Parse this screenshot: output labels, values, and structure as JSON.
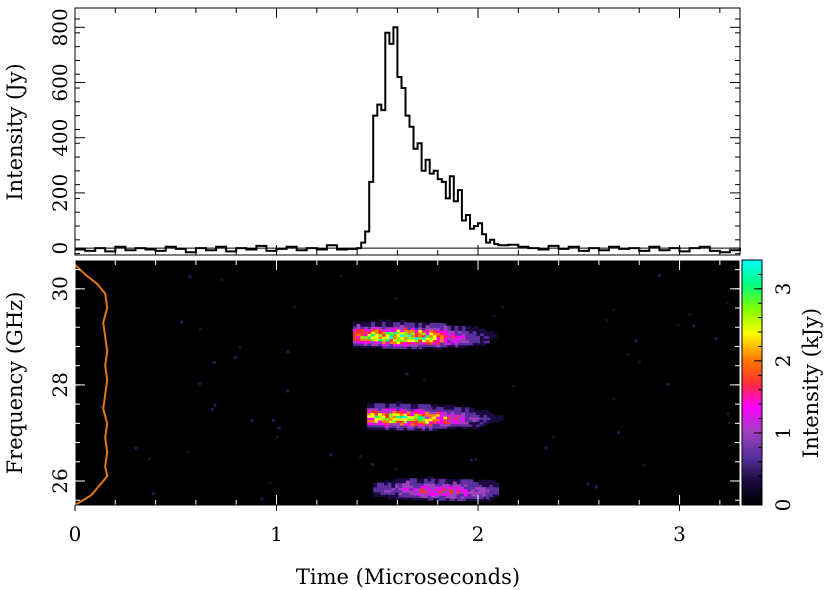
{
  "chart_data": [
    {
      "type": "line",
      "panel": "lightcurve",
      "ylabel": "Intensity (Jy)",
      "xlim": [
        0,
        3.3
      ],
      "ylim": [
        -25,
        870
      ],
      "yticks": [
        0,
        200,
        400,
        600,
        800
      ],
      "series": [
        {
          "style": "step",
          "color": "#000000",
          "x": [
            0.0,
            0.05,
            0.1,
            0.15,
            0.2,
            0.25,
            0.3,
            0.35,
            0.4,
            0.45,
            0.5,
            0.55,
            0.6,
            0.65,
            0.7,
            0.75,
            0.8,
            0.85,
            0.9,
            0.95,
            1.0,
            1.05,
            1.1,
            1.15,
            1.2,
            1.25,
            1.3,
            1.35,
            1.4,
            1.42,
            1.44,
            1.46,
            1.48,
            1.5,
            1.52,
            1.54,
            1.56,
            1.58,
            1.6,
            1.62,
            1.64,
            1.66,
            1.68,
            1.7,
            1.72,
            1.74,
            1.76,
            1.78,
            1.8,
            1.82,
            1.84,
            1.86,
            1.88,
            1.9,
            1.92,
            1.94,
            1.96,
            1.98,
            2.0,
            2.02,
            2.04,
            2.06,
            2.08,
            2.1,
            2.15,
            2.2,
            2.25,
            2.3,
            2.35,
            2.4,
            2.45,
            2.5,
            2.55,
            2.6,
            2.65,
            2.7,
            2.75,
            2.8,
            2.85,
            2.9,
            2.95,
            3.0,
            3.05,
            3.1,
            3.15,
            3.2,
            3.25,
            3.3
          ],
          "y": [
            -5,
            -10,
            0,
            -12,
            5,
            -8,
            0,
            -5,
            -10,
            5,
            -3,
            -15,
            0,
            -8,
            5,
            -12,
            0,
            -5,
            8,
            -10,
            -3,
            5,
            -8,
            0,
            -5,
            10,
            -5,
            -3,
            0,
            20,
            60,
            240,
            480,
            520,
            500,
            780,
            740,
            800,
            620,
            580,
            480,
            440,
            360,
            380,
            280,
            320,
            270,
            280,
            250,
            240,
            180,
            260,
            170,
            210,
            100,
            120,
            70,
            80,
            90,
            50,
            20,
            30,
            15,
            10,
            12,
            5,
            0,
            -5,
            8,
            -3,
            5,
            -10,
            0,
            -8,
            5,
            -3,
            0,
            -10,
            5,
            -8,
            0,
            -12,
            0,
            5,
            -10,
            -15,
            -8,
            0
          ]
        }
      ]
    },
    {
      "type": "heatmap",
      "panel": "dynamic-spectrum",
      "xlabel": "Time (Microseconds)",
      "ylabel": "Frequency (GHz)",
      "xlim": [
        0,
        3.3
      ],
      "ylim": [
        25.5,
        30.6
      ],
      "xticks": [
        0,
        1,
        2,
        3
      ],
      "yticks": [
        26,
        28,
        30
      ],
      "colorbar": {
        "label": "Intensity (kJy)",
        "range": [
          0,
          3.4
        ],
        "ticks": [
          0,
          1,
          2,
          3
        ],
        "colors": [
          "#000000",
          "#1a0a40",
          "#5a30a0",
          "#a040c0",
          "#ff00ff",
          "#ff3030",
          "#ff8000",
          "#ffff00",
          "#80ff00",
          "#00ff80",
          "#00ffff"
        ]
      },
      "bands": [
        {
          "freq": 29.1,
          "t_start": 1.38,
          "t_end": 2.2,
          "peak_t": 1.6,
          "peak": 3.4
        },
        {
          "freq": 27.4,
          "t_start": 1.45,
          "t_end": 2.15,
          "peak_t": 1.62,
          "peak": 3.1
        },
        {
          "freq": 25.9,
          "t_start": 1.48,
          "t_end": 2.08,
          "peak_t": 1.8,
          "peak": 1.6
        }
      ],
      "spectrum_profile": {
        "color": "#e07818",
        "freq": [
          25.5,
          25.7,
          25.9,
          26.1,
          26.3,
          26.6,
          26.9,
          27.2,
          27.5,
          27.8,
          28.1,
          28.4,
          28.7,
          29.0,
          29.3,
          29.6,
          29.9,
          30.1,
          30.3,
          30.5
        ],
        "level": [
          0.0,
          0.08,
          0.12,
          0.16,
          0.15,
          0.16,
          0.15,
          0.16,
          0.14,
          0.15,
          0.16,
          0.15,
          0.16,
          0.15,
          0.14,
          0.16,
          0.15,
          0.11,
          0.05,
          0.0
        ]
      }
    }
  ]
}
